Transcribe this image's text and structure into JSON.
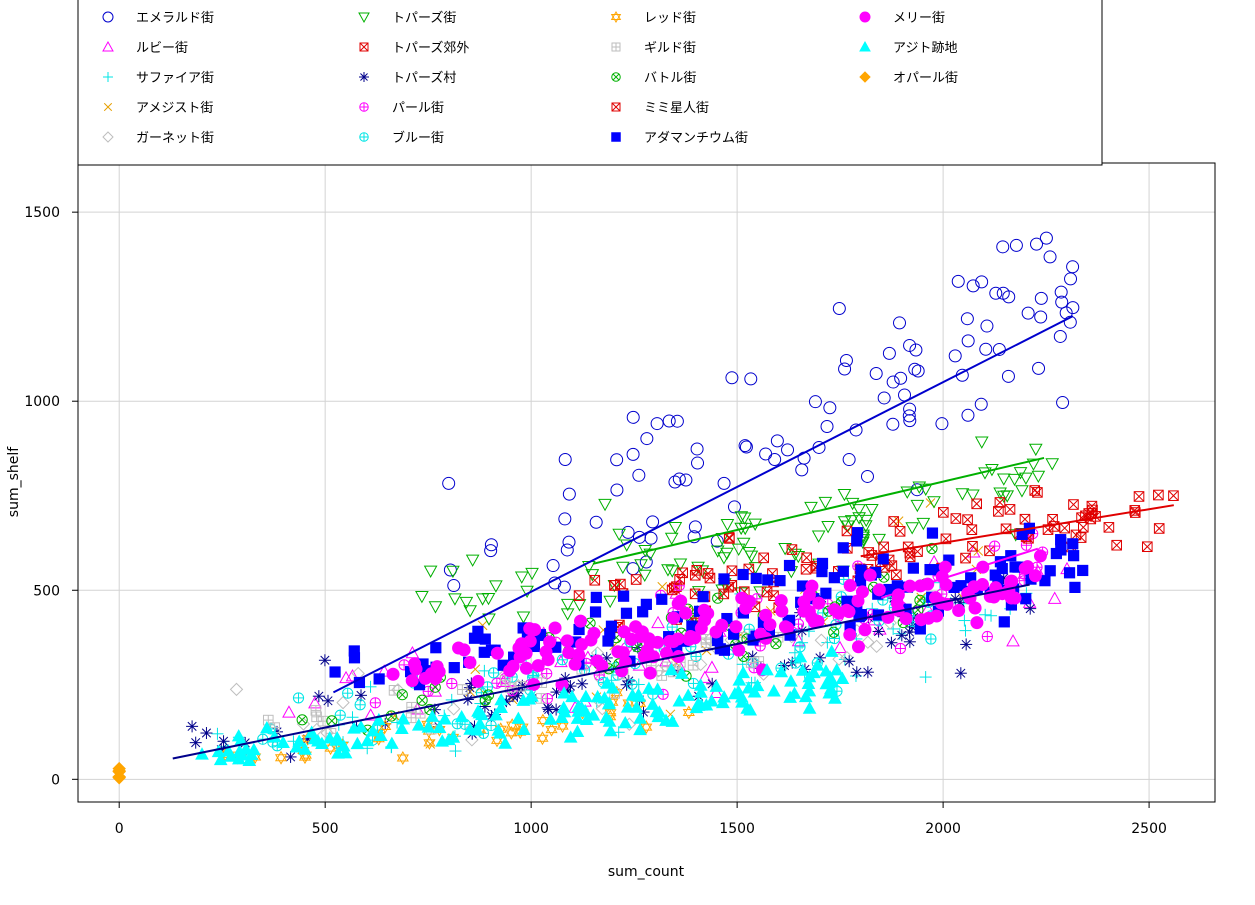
{
  "chart_data": {
    "type": "scatter",
    "title": "",
    "xlabel": "sum_count",
    "ylabel": "sum_shelf",
    "xlim": [
      -100,
      2660
    ],
    "ylim": [
      -60,
      1630
    ],
    "xticks": [
      0,
      500,
      1000,
      1500,
      2000,
      2500
    ],
    "yticks": [
      0,
      500,
      1000,
      1500
    ],
    "grid": true,
    "legend_placement": "top",
    "series": [
      {
        "name": "エメラルド街",
        "color": "#0000CD",
        "marker": "circle-open",
        "range": [
          [
            780,
            2320
          ],
          [
            500,
            1570
          ]
        ],
        "fit": [
          [
            520,
            230
          ],
          [
            2315,
            1225
          ]
        ]
      },
      {
        "name": "ルビー街",
        "color": "#FF00FF",
        "marker": "triangle-open",
        "range": [
          [
            350,
            2330
          ],
          [
            120,
            700
          ]
        ],
        "fit": null
      },
      {
        "name": "サファイア街",
        "color": "#00E5E5",
        "marker": "plus",
        "range": [
          [
            200,
            2220
          ],
          [
            60,
            620
          ]
        ],
        "fit": null
      },
      {
        "name": "アメジスト街",
        "color": "#E69F00",
        "marker": "x",
        "range": [
          [
            300,
            2130
          ],
          [
            80,
            770
          ]
        ],
        "fit": null
      },
      {
        "name": "ガーネット街",
        "color": "#BEBEBE",
        "marker": "diamond-open",
        "range": [
          [
            280,
            1900
          ],
          [
            80,
            560
          ]
        ],
        "fit": null
      },
      {
        "name": "トパーズ街",
        "color": "#00B000",
        "marker": "triangle-down-open",
        "range": [
          [
            700,
            2270
          ],
          [
            420,
            920
          ]
        ],
        "fit": [
          [
            1150,
            570
          ],
          [
            2245,
            850
          ]
        ]
      },
      {
        "name": "トパーズ郊外",
        "color": "#E00000",
        "marker": "square-x",
        "range": [
          [
            1100,
            2560
          ],
          [
            480,
            810
          ]
        ],
        "fit": [
          [
            1800,
            590
          ],
          [
            2560,
            725
          ]
        ]
      },
      {
        "name": "トパーズ村",
        "color": "#00008B",
        "marker": "star",
        "range": [
          [
            150,
            2220
          ],
          [
            55,
            590
          ]
        ],
        "fit": [
          [
            130,
            55
          ],
          [
            2210,
            515
          ]
        ]
      },
      {
        "name": "パール街",
        "color": "#FF00FF",
        "marker": "circle-plus",
        "range": [
          [
            600,
            2280
          ],
          [
            200,
            700
          ]
        ],
        "fit": [
          [
            1850,
            480
          ],
          [
            2230,
            610
          ]
        ]
      },
      {
        "name": "ブルー街",
        "color": "#00E5E5",
        "marker": "circle-plus",
        "range": [
          [
            300,
            2000
          ],
          [
            80,
            600
          ]
        ],
        "fit": null
      },
      {
        "name": "レッド街",
        "color": "#FFA500",
        "marker": "star-of-david",
        "range": [
          [
            250,
            1400
          ],
          [
            50,
            240
          ]
        ],
        "fit": null
      },
      {
        "name": "ギルド街",
        "color": "#BEBEBE",
        "marker": "square-plus",
        "range": [
          [
            350,
            1600
          ],
          [
            120,
            430
          ]
        ],
        "fit": null
      },
      {
        "name": "バトル街",
        "color": "#00B000",
        "marker": "circle-x",
        "range": [
          [
            400,
            2000
          ],
          [
            120,
            620
          ]
        ],
        "fit": null
      },
      {
        "name": "ミミ星人街",
        "color": "#E00000",
        "marker": "square-x",
        "range": [
          [
            1200,
            2350
          ],
          [
            400,
            780
          ]
        ],
        "fit": null
      },
      {
        "name": "アダマンチウム街",
        "color": "#0000FF",
        "marker": "square-filled",
        "range": [
          [
            500,
            2350
          ],
          [
            250,
            720
          ]
        ],
        "fit": null
      },
      {
        "name": "メリー街",
        "color": "#FF00FF",
        "marker": "circle-filled",
        "range": [
          [
            600,
            2240
          ],
          [
            250,
            610
          ]
        ],
        "fit": null
      },
      {
        "name": "アジト跡地",
        "color": "#00FFFF",
        "marker": "triangle-filled",
        "range": [
          [
            150,
            1760
          ],
          [
            45,
            340
          ]
        ],
        "fit": null
      },
      {
        "name": "オパール街",
        "color": "#FFA500",
        "marker": "diamond-filled",
        "range": [
          [
            0,
            0
          ],
          [
            0,
            30
          ]
        ],
        "fit": null
      }
    ]
  }
}
